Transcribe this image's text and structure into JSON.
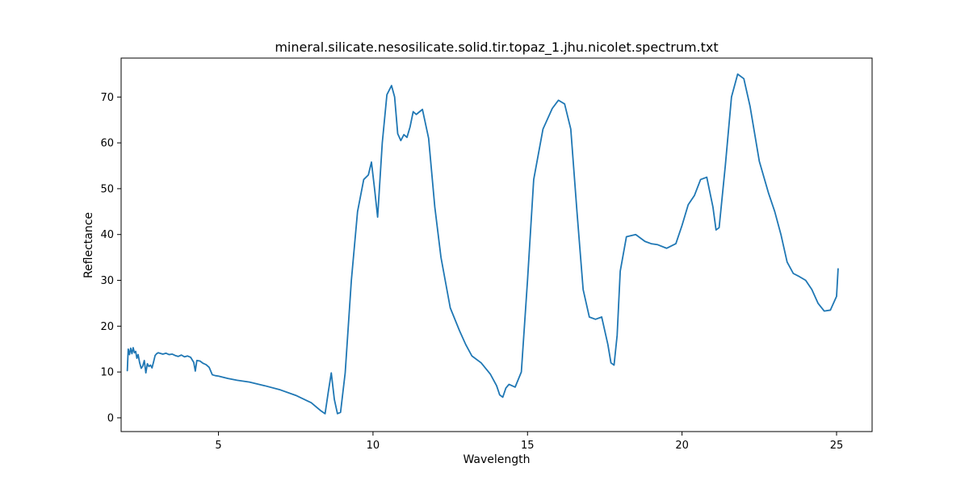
{
  "chart_data": {
    "type": "line",
    "title": "mineral.silicate.nesosilicate.solid.tir.topaz_1.jhu.nicolet.spectrum.txt",
    "xlabel": "Wavelength",
    "ylabel": "Reflectance",
    "xlim": [
      1.85,
      26.15
    ],
    "ylim": [
      -3.0,
      78.5
    ],
    "xticks": [
      5,
      10,
      15,
      20,
      25
    ],
    "yticks": [
      0,
      10,
      20,
      30,
      40,
      50,
      60,
      70
    ],
    "grid": false,
    "series": [
      {
        "name": "reflectance",
        "color": "#1f77b4",
        "x": [
          2.05,
          2.08,
          2.12,
          2.16,
          2.2,
          2.24,
          2.28,
          2.32,
          2.36,
          2.4,
          2.45,
          2.5,
          2.55,
          2.6,
          2.65,
          2.7,
          2.75,
          2.8,
          2.85,
          2.9,
          2.95,
          3.0,
          3.05,
          3.1,
          3.2,
          3.3,
          3.4,
          3.5,
          3.6,
          3.7,
          3.8,
          3.9,
          4.0,
          4.1,
          4.2,
          4.25,
          4.3,
          4.4,
          4.5,
          4.6,
          4.7,
          4.8,
          4.9,
          5.0,
          5.3,
          5.6,
          6.0,
          6.5,
          7.0,
          7.5,
          8.0,
          8.3,
          8.45,
          8.55,
          8.65,
          8.75,
          8.85,
          8.95,
          9.1,
          9.3,
          9.5,
          9.7,
          9.85,
          9.95,
          10.05,
          10.15,
          10.3,
          10.45,
          10.6,
          10.7,
          10.8,
          10.9,
          11.0,
          11.1,
          11.2,
          11.3,
          11.4,
          11.6,
          11.8,
          12.0,
          12.2,
          12.5,
          12.8,
          13.0,
          13.2,
          13.5,
          13.8,
          14.0,
          14.1,
          14.2,
          14.3,
          14.4,
          14.6,
          14.8,
          15.0,
          15.2,
          15.5,
          15.8,
          16.0,
          16.2,
          16.4,
          16.6,
          16.8,
          17.0,
          17.2,
          17.4,
          17.6,
          17.7,
          17.8,
          17.9,
          18.0,
          18.2,
          18.5,
          18.8,
          19.0,
          19.2,
          19.5,
          19.8,
          20.0,
          20.2,
          20.4,
          20.6,
          20.8,
          21.0,
          21.1,
          21.2,
          21.4,
          21.6,
          21.8,
          22.0,
          22.2,
          22.5,
          22.8,
          23.0,
          23.2,
          23.4,
          23.6,
          23.8,
          24.0,
          24.2,
          24.4,
          24.6,
          24.8,
          25.0,
          25.05
        ],
        "y": [
          10.3,
          15.0,
          13.8,
          15.2,
          14.0,
          15.3,
          14.2,
          14.5,
          13.0,
          13.8,
          12.0,
          10.8,
          11.3,
          12.5,
          9.8,
          11.8,
          11.2,
          11.5,
          10.9,
          12.2,
          13.6,
          14.0,
          14.2,
          14.1,
          13.9,
          14.1,
          13.8,
          13.9,
          13.6,
          13.4,
          13.7,
          13.3,
          13.5,
          13.2,
          12.1,
          10.2,
          12.5,
          12.4,
          11.9,
          11.6,
          11.0,
          9.4,
          9.2,
          9.1,
          8.6,
          8.2,
          7.8,
          7.0,
          6.1,
          4.9,
          3.3,
          1.6,
          0.9,
          5.5,
          9.8,
          4.0,
          0.9,
          1.2,
          9.8,
          30.0,
          45.0,
          52.0,
          53.0,
          55.8,
          50.0,
          43.8,
          60.0,
          70.5,
          72.5,
          70.0,
          62.0,
          60.5,
          61.8,
          61.2,
          63.5,
          66.8,
          66.2,
          67.3,
          61.0,
          46.0,
          35.0,
          24.0,
          19.0,
          16.0,
          13.5,
          12.0,
          9.5,
          7.0,
          5.0,
          4.5,
          6.5,
          7.3,
          6.7,
          10.0,
          30.0,
          52.0,
          63.0,
          67.5,
          69.3,
          68.5,
          63.0,
          45.0,
          28.0,
          22.0,
          21.5,
          22.0,
          16.0,
          12.0,
          11.5,
          18.0,
          32.0,
          39.5,
          40.0,
          38.5,
          38.0,
          37.8,
          37.0,
          38.0,
          42.0,
          46.5,
          48.5,
          52.0,
          52.5,
          46.0,
          41.0,
          41.5,
          55.0,
          70.0,
          75.0,
          74.0,
          68.0,
          56.0,
          49.0,
          45.0,
          40.0,
          34.0,
          31.5,
          30.8,
          30.0,
          28.0,
          25.0,
          23.3,
          23.5,
          26.5,
          32.5
        ]
      }
    ]
  }
}
